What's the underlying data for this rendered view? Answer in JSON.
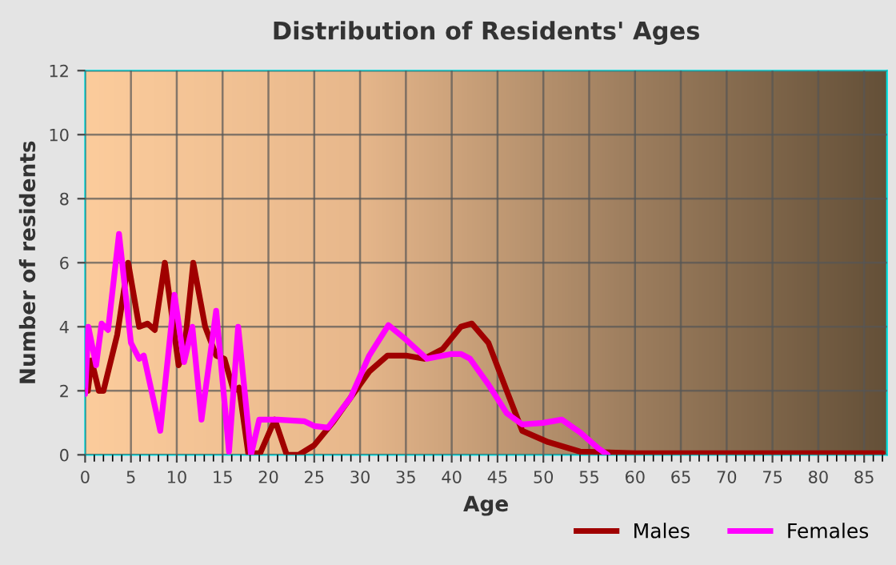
{
  "chart_data": {
    "type": "line",
    "title": "Distribution of Residents' Ages",
    "xlabel": "Age",
    "ylabel": "Number of residents",
    "series": [
      {
        "name": "Males",
        "color": "#a00000",
        "x": [
          0,
          0.3,
          0.7,
          1.5,
          2.0,
          3.5,
          4.7,
          5.9,
          6.8,
          7.6,
          8.7,
          10.2,
          10.8,
          11.8,
          13.1,
          14.3,
          15.2,
          16.2,
          16.8,
          17.8,
          19.1,
          20.7,
          22,
          23.3,
          25,
          27,
          29,
          31,
          33,
          35,
          37,
          39,
          41,
          42.2,
          44,
          46,
          47.7,
          50.5,
          54,
          60,
          70,
          80,
          87
        ],
        "values": [
          2.0,
          2.0,
          2.95,
          2.0,
          2.0,
          3.75,
          6.0,
          4.0,
          4.1,
          3.9,
          6.0,
          2.8,
          3.2,
          6.0,
          4.0,
          3.1,
          3.0,
          2.0,
          2.1,
          0.05,
          0.05,
          1.1,
          0.0,
          0.0,
          0.3,
          1.0,
          1.8,
          2.6,
          3.1,
          3.1,
          3.0,
          3.3,
          4.0,
          4.1,
          3.5,
          2.0,
          0.75,
          0.4,
          0.1,
          0.05,
          0.05,
          0.05,
          0.05
        ]
      },
      {
        "name": "Females",
        "color": "#ff00ff",
        "x": [
          0,
          0.35,
          1.2,
          1.8,
          2.5,
          3.7,
          5.0,
          5.9,
          6.4,
          8.2,
          9.75,
          10.8,
          11.7,
          12.7,
          14.3,
          15.7,
          16.7,
          18.1,
          19,
          21,
          23.9,
          25,
          26.5,
          29,
          31,
          33.1,
          35,
          37.3,
          40,
          41,
          42,
          44,
          46,
          47.7,
          50,
          52,
          54,
          56,
          57
        ],
        "values": [
          1.9,
          4.0,
          2.8,
          4.1,
          3.9,
          6.9,
          3.5,
          3.0,
          3.1,
          0.75,
          5.0,
          2.9,
          4.0,
          1.1,
          4.5,
          0.1,
          4.0,
          0.0,
          1.1,
          1.1,
          1.05,
          0.9,
          0.85,
          1.8,
          3.1,
          4.05,
          3.6,
          3.0,
          3.15,
          3.15,
          3.0,
          2.2,
          1.3,
          0.95,
          1.0,
          1.1,
          0.7,
          0.2,
          0.0
        ]
      }
    ],
    "xlim": [
      0,
      87.5
    ],
    "xticks": [
      0,
      5,
      10,
      15,
      20,
      25,
      30,
      35,
      40,
      45,
      50,
      55,
      60,
      65,
      70,
      75,
      80,
      85
    ],
    "ylim": [
      0,
      12
    ],
    "yticks": [
      0,
      2,
      4,
      6,
      8,
      10,
      12
    ],
    "grid": true,
    "legend": "bottom right",
    "marker": "none",
    "line_style": "solid"
  }
}
